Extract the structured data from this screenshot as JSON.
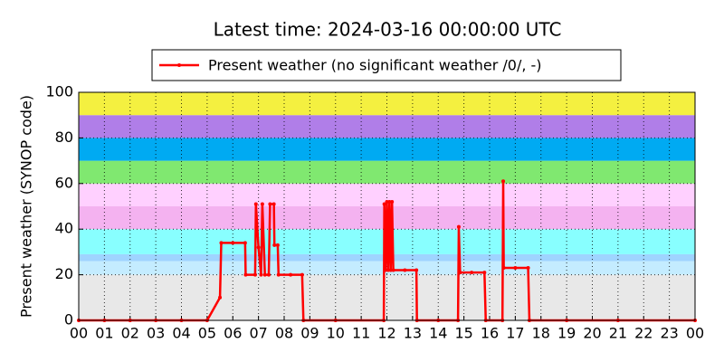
{
  "chart_data": {
    "type": "line",
    "title": "Latest time: 2024-03-16 00:00:00 UTC",
    "y_label": "Present weather (SYNOP code)",
    "xlim": [
      0,
      24
    ],
    "ylim": [
      0,
      100
    ],
    "xticks": [
      {
        "value": 0,
        "label": "00"
      },
      {
        "value": 1,
        "label": "01"
      },
      {
        "value": 2,
        "label": "02"
      },
      {
        "value": 3,
        "label": "03"
      },
      {
        "value": 4,
        "label": "04"
      },
      {
        "value": 5,
        "label": "05"
      },
      {
        "value": 6,
        "label": "06"
      },
      {
        "value": 7,
        "label": "07"
      },
      {
        "value": 8,
        "label": "08"
      },
      {
        "value": 9,
        "label": "09"
      },
      10,
      11,
      12,
      13,
      14,
      15,
      16,
      17,
      18,
      19,
      20,
      21,
      22,
      23,
      {
        "value": 24,
        "label": "00"
      }
    ],
    "yticks": [
      0,
      20,
      40,
      60,
      80,
      100
    ],
    "grid": true,
    "legend": "top",
    "bands": [
      {
        "from": 0,
        "to": 20,
        "color": "#e8e8e8"
      },
      {
        "from": 20,
        "to": 26,
        "color": "#c4ecff"
      },
      {
        "from": 26,
        "to": 29,
        "color": "#9fd4ff"
      },
      {
        "from": 29,
        "to": 40,
        "color": "#88ffff"
      },
      {
        "from": 40,
        "to": 50,
        "color": "#f4b2f0"
      },
      {
        "from": 50,
        "to": 60,
        "color": "#ffd0ff"
      },
      {
        "from": 60,
        "to": 70,
        "color": "#80e870"
      },
      {
        "from": 70,
        "to": 80,
        "color": "#00aaf2"
      },
      {
        "from": 80,
        "to": 90,
        "color": "#b07ee8"
      },
      {
        "from": 90,
        "to": 100,
        "color": "#f4f040"
      }
    ],
    "series": [
      {
        "name": "Present weather (no significant weather /0/, -)",
        "color": "#ff0000",
        "x": [
          0,
          1,
          2,
          3,
          4,
          5,
          5.5,
          5.55,
          6,
          6.48,
          6.5,
          6.87,
          6.9,
          7.0,
          7.1,
          7.15,
          7.25,
          7.4,
          7.45,
          7.6,
          7.62,
          7.75,
          7.78,
          8.25,
          8.7,
          8.75,
          10,
          11.88,
          11.9,
          11.95,
          12.0,
          12.05,
          12.1,
          12.15,
          12.2,
          12.25,
          12.7,
          13.15,
          13.17,
          14,
          14.77,
          14.8,
          14.85,
          15.3,
          15.8,
          15.85,
          16.5,
          16.53,
          16.55,
          17,
          17.5,
          17.55,
          19,
          21,
          24
        ],
        "values": [
          0,
          0,
          0,
          0,
          0,
          0,
          10,
          34,
          34,
          34,
          20,
          20,
          51,
          32,
          20,
          51,
          20,
          20,
          51,
          51,
          33,
          33,
          20,
          20,
          20,
          0,
          0,
          0,
          51,
          22,
          52,
          22,
          52,
          22,
          52,
          22,
          22,
          22,
          0,
          0,
          0,
          41,
          21,
          21,
          21,
          0,
          0,
          61,
          23,
          23,
          23,
          0,
          0,
          0,
          0
        ]
      }
    ]
  }
}
